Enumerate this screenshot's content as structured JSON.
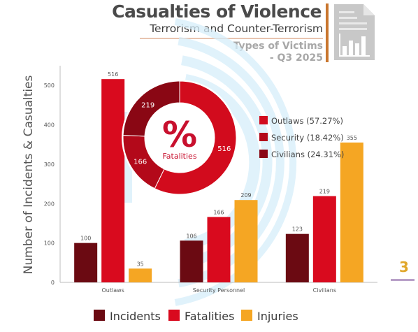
{
  "header": {
    "title": "Casualties of Violence",
    "subtitle": "Terrorism and Counter-Terrorism",
    "section_line1": "Types of Victims",
    "section_line2": "- Q3 2025"
  },
  "page_number": "3",
  "colors": {
    "incidents": "#6b0a12",
    "fatalities": "#d90a1e",
    "injuries": "#f5a623",
    "donut_outlaws": "#d20b1d",
    "donut_security": "#b3091a",
    "donut_civilians": "#8a0714"
  },
  "icons": [
    "report-chart-icon",
    "percent-icon"
  ],
  "chart_data": [
    {
      "type": "bar",
      "title": "",
      "xlabel": "",
      "ylabel": "Number of Incidents & Casualties",
      "ylim": [
        0,
        550
      ],
      "yticks": [
        "0",
        "100",
        "200",
        "300",
        "400",
        "500"
      ],
      "grid": false,
      "legend_position": "bottom",
      "categories": [
        "Outlaws",
        "Security Personnel",
        "Civilians"
      ],
      "series": [
        {
          "name": "Incidents",
          "values": [
            100,
            106,
            123
          ],
          "labels": [
            "100",
            "106",
            "123"
          ]
        },
        {
          "name": "Fatalities",
          "values": [
            516,
            166,
            219
          ],
          "labels": [
            "516",
            "166",
            "219"
          ]
        },
        {
          "name": "Injuries",
          "values": [
            35,
            209,
            355
          ],
          "labels": [
            "35",
            "209",
            "355"
          ]
        }
      ]
    },
    {
      "type": "pie",
      "center_label": "Fatalities",
      "center_symbol": "%",
      "legend_position": "right",
      "slices": [
        {
          "name": "Outlaws",
          "value": 516,
          "label": "516",
          "legend": "Outlaws (57.27%)"
        },
        {
          "name": "Security",
          "value": 166,
          "label": "166",
          "legend": "Security (18.42%)"
        },
        {
          "name": "Civilians",
          "value": 219,
          "label": "219",
          "legend": "Civilians (24.31%)"
        }
      ]
    }
  ]
}
